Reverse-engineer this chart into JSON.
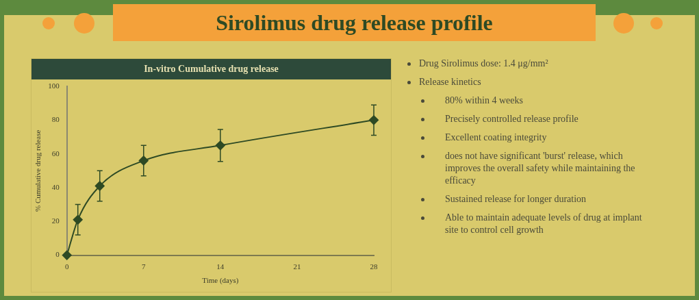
{
  "chart_data": {
    "type": "line",
    "title": "Sirolimus drug release profile",
    "subtitle": "In-vitro Cumulative drug release",
    "xlabel": "Time (days)",
    "ylabel": "% Cumulative drug release",
    "x": [
      0,
      1,
      3,
      7,
      14,
      28
    ],
    "series": [
      {
        "color": "#2e4a24",
        "values": [
          0,
          21,
          41,
          56,
          65,
          80
        ],
        "errors": [
          null,
          9,
          9,
          9,
          9.5,
          9
        ]
      }
    ],
    "xlim": [
      0,
      28
    ],
    "xticks": [
      0,
      7,
      14,
      21,
      28
    ],
    "ylim": [
      0,
      100
    ],
    "yticks": [
      0,
      20,
      40,
      60,
      80,
      100
    ],
    "marker": "diamond",
    "line_style": "solid",
    "grid": false,
    "legend": false,
    "annotations": [
      "Drug Sirolimus dose: 1.4 μg/mm²",
      "Release kinetics",
      "80% within 4 weeks",
      "Precisely controlled release profile",
      "Excellent coating integrity",
      "does not have significant 'burst' release, which improves the overall safety while maintaining the efficacy",
      "Sustained release for longer duration",
      "Able to maintain adequate levels of drug at implant site to control cell growth"
    ]
  }
}
